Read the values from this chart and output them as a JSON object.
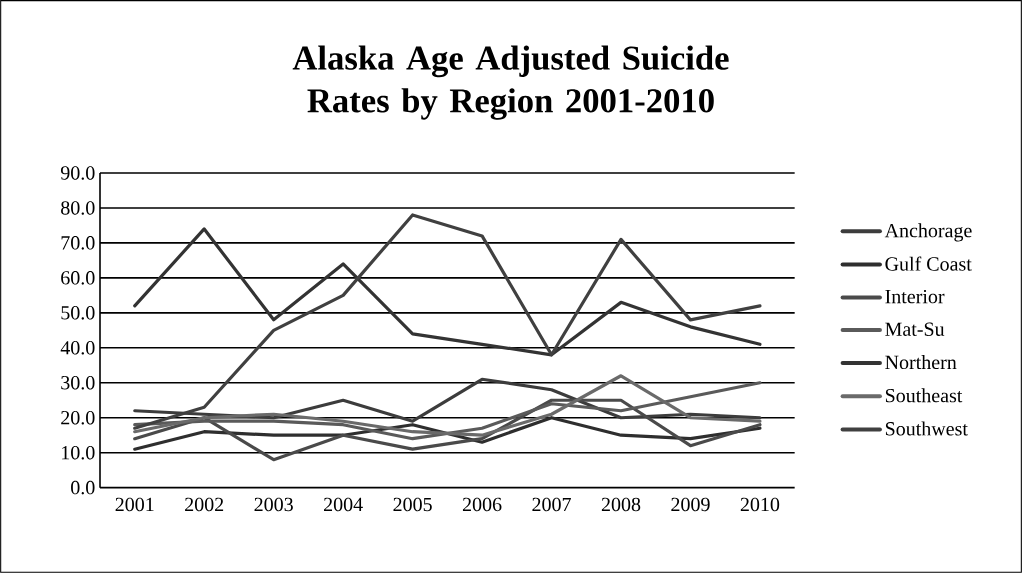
{
  "chart_data": {
    "type": "line",
    "title": "Alaska Age Adjusted Suicide Rates by Region 2001-2010",
    "categories": [
      "2001",
      "2002",
      "2003",
      "2004",
      "2005",
      "2006",
      "2007",
      "2008",
      "2009",
      "2010"
    ],
    "series": [
      {
        "name": "Anchorage",
        "color": "#3c3c3c",
        "values": [
          22,
          21,
          20,
          25,
          19,
          31,
          28,
          20,
          21,
          20
        ]
      },
      {
        "name": "Gulf Coast",
        "color": "#2e2e2e",
        "values": [
          11,
          16,
          15,
          15,
          18,
          13,
          20,
          15,
          14,
          17
        ]
      },
      {
        "name": "Interior",
        "color": "#4a4a4a",
        "values": [
          14,
          20,
          8,
          15,
          11,
          14,
          25,
          25,
          12,
          18
        ]
      },
      {
        "name": "Mat-Su",
        "color": "#5a5a5a",
        "values": [
          18,
          19,
          19,
          18,
          14,
          17,
          24,
          22,
          26,
          30
        ]
      },
      {
        "name": "Northern",
        "color": "#333333",
        "values": [
          52,
          74,
          48,
          64,
          44,
          41,
          38,
          53,
          46,
          41
        ]
      },
      {
        "name": "Southeast",
        "color": "#6a6a6a",
        "values": [
          16,
          20,
          21,
          19,
          16,
          15,
          21,
          32,
          20,
          19
        ]
      },
      {
        "name": "Southwest",
        "color": "#404040",
        "values": [
          17,
          23,
          45,
          55,
          78,
          72,
          38,
          71,
          48,
          52
        ]
      }
    ],
    "ylim": [
      0,
      90
    ],
    "yticks": [
      {
        "value": 0,
        "label": "0.0"
      },
      {
        "value": 10,
        "label": "10.0"
      },
      {
        "value": 20,
        "label": "20.0"
      },
      {
        "value": 30,
        "label": "30.0"
      },
      {
        "value": 40,
        "label": "40.0"
      },
      {
        "value": 50,
        "label": "50.0"
      },
      {
        "value": 60,
        "label": "60.0"
      },
      {
        "value": 70,
        "label": "70.0"
      },
      {
        "value": 80,
        "label": "80.0"
      },
      {
        "value": 90,
        "label": "90.0"
      }
    ],
    "grid": "y",
    "legend": "right",
    "marker": "none",
    "line_style": "solid"
  }
}
